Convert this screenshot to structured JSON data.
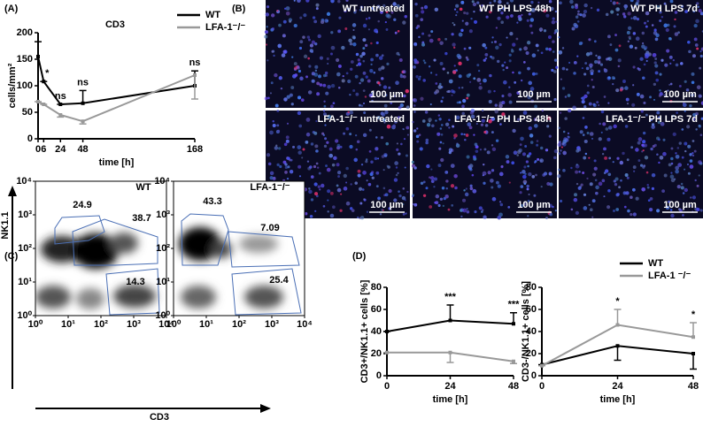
{
  "panel_labels": [
    "(A)",
    "(B)",
    "(C)",
    "(D)"
  ],
  "chart_data": [
    {
      "type": "line",
      "title": "CD3",
      "xlabel": "time [h]",
      "ylabel": "cells/mm²",
      "x": [
        0,
        6,
        24,
        48,
        168
      ],
      "xlim": [
        0,
        168
      ],
      "xticks": [
        0,
        6,
        24,
        48,
        168
      ],
      "ylim": [
        0,
        200
      ],
      "yticks": [
        0,
        50,
        100,
        150,
        200
      ],
      "legend": "upper right",
      "series": [
        {
          "name": "WT",
          "color": "#000000",
          "values": [
            155,
            108,
            65,
            67,
            100
          ],
          "errors": [
            28,
            0,
            0,
            24,
            28
          ],
          "error_direction": "up"
        },
        {
          "name": "LFA-1⁻/⁻",
          "color": "#999999",
          "values": [
            70,
            65,
            45,
            33,
            120
          ],
          "errors": [
            0,
            0,
            4,
            5,
            45
          ],
          "error_direction": "down"
        }
      ],
      "annotations": [
        {
          "x": 6,
          "text": "*"
        },
        {
          "x": 24,
          "text": "ns"
        },
        {
          "x": 48,
          "text": "ns"
        },
        {
          "x": 168,
          "text": "ns"
        }
      ]
    },
    {
      "type": "line",
      "xlabel": "time [h]",
      "ylabel": "CD3+/NK1.1+ cells [%]",
      "x": [
        0,
        24,
        48
      ],
      "xlim": [
        0,
        48
      ],
      "xticks": [
        0,
        24,
        48
      ],
      "ylim": [
        0,
        80
      ],
      "yticks": [
        0,
        20,
        40,
        60,
        80
      ],
      "series": [
        {
          "color": "#000000",
          "values": [
            40,
            50,
            47
          ],
          "errors": [
            0,
            14,
            10
          ],
          "error_direction": "up"
        },
        {
          "color": "#999999",
          "values": [
            21,
            21,
            13
          ],
          "errors": [
            0,
            9,
            2
          ],
          "error_direction": "down"
        }
      ],
      "annotations": [
        {
          "x": 24,
          "text": "***"
        },
        {
          "x": 48,
          "text": "***"
        }
      ]
    },
    {
      "type": "line",
      "xlabel": "time [h]",
      "ylabel": "CD3-/NK1.1+ cells [%]",
      "x": [
        0,
        24,
        48
      ],
      "xlim": [
        0,
        48
      ],
      "xticks": [
        0,
        24,
        48
      ],
      "ylim": [
        0,
        80
      ],
      "yticks": [
        0,
        20,
        40,
        60,
        80
      ],
      "legend": "upper right",
      "series": [
        {
          "name": "WT",
          "color": "#000000",
          "values": [
            10,
            27,
            20
          ],
          "errors": [
            0,
            13,
            14
          ],
          "error_direction": "down"
        },
        {
          "name": "LFA-1 ⁻/⁻",
          "color": "#999999",
          "values": [
            9,
            46,
            35
          ],
          "errors": [
            0,
            14,
            13
          ],
          "error_direction": "up"
        }
      ],
      "annotations": [
        {
          "x": 24,
          "text": "*"
        },
        {
          "x": 48,
          "text": "*"
        }
      ]
    }
  ],
  "microscopy": {
    "scale_bar": "100 µm",
    "images": [
      "WT untreated",
      "WT PH LPS 48h",
      "WT PH LPS 7d",
      "LFA-1⁻/⁻ untreated",
      "LFA-1⁻/⁻ PH LPS 48h",
      "LFA-1⁻/⁻ PH LPS 7d"
    ]
  },
  "flow_cytometry": {
    "ylabel": "NK1.1",
    "xlabel": "CD3",
    "lim": [
      1,
      10000
    ],
    "ticks": [
      {
        "value": 1,
        "label": "10⁰"
      },
      {
        "value": 10,
        "label": "10¹"
      },
      {
        "value": 100,
        "label": "10²"
      },
      {
        "value": 1000,
        "label": "10³"
      },
      {
        "value": 10000,
        "label": "10⁴"
      }
    ],
    "plots": [
      {
        "title": "WT",
        "gates": [
          24.9,
          38.7,
          14.3
        ]
      },
      {
        "title": "LFA-1⁻/⁻",
        "gates": [
          43.3,
          7.09,
          25.4
        ]
      }
    ]
  }
}
